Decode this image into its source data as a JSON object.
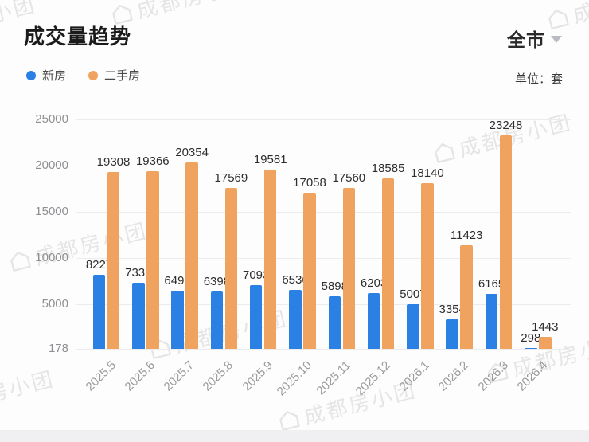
{
  "header": {
    "title": "成交量趋势",
    "scope_selector": {
      "label": "全市"
    },
    "unit_label": "单位：套"
  },
  "legend": [
    {
      "label": "新房",
      "color": "#2B80E3"
    },
    {
      "label": "二手房",
      "color": "#F0A35F"
    }
  ],
  "watermark": {
    "text": "成都房小团"
  },
  "chart_data": {
    "type": "bar",
    "title": "成交量趋势",
    "unit": "套",
    "categories": [
      "2025.5",
      "2025.6",
      "2025.7",
      "2025.8",
      "2025.9",
      "2025.10",
      "2025.11",
      "2025.12",
      "2026.1",
      "2026.2",
      "2026.3",
      "2026.4"
    ],
    "series": [
      {
        "name": "新房",
        "color": "#2B80E3",
        "values": [
          8227,
          7336,
          6491,
          6398,
          7093,
          6536,
          5898,
          6203,
          5007,
          3354,
          6165,
          298
        ]
      },
      {
        "name": "二手房",
        "color": "#F0A35F",
        "values": [
          19308,
          19366,
          20354,
          17569,
          19581,
          17058,
          17560,
          18585,
          18140,
          11423,
          23248,
          1443
        ]
      }
    ],
    "y_ticks": [
      178,
      5000,
      10000,
      15000,
      20000,
      25000
    ],
    "ylim": [
      178,
      25000
    ],
    "xlabel": "",
    "ylabel": "套",
    "grid": true,
    "legend_position": "top-left",
    "data_labels": true
  }
}
